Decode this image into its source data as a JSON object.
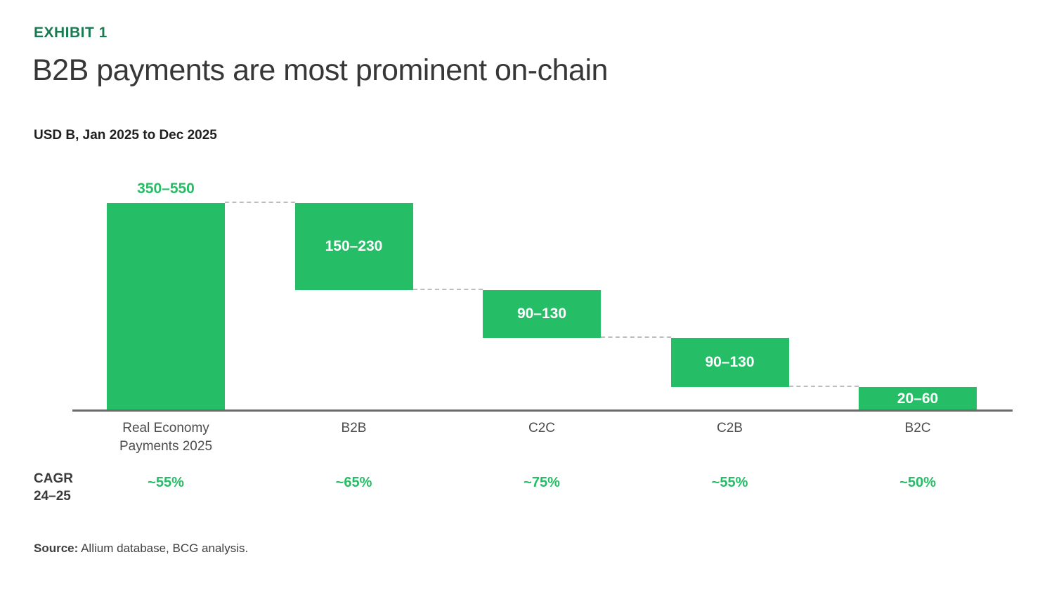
{
  "page": {
    "exhibit_label": "EXHIBIT 1",
    "title": "B2B payments are most prominent on-chain",
    "subtitle": "USD B, Jan 2025 to Dec 2025",
    "source_label": "Source:",
    "source_text": "Allium database, BCG analysis."
  },
  "cagr": {
    "header_line1": "CAGR",
    "header_line2": "24–25"
  },
  "colors": {
    "bar_green": "#25BD66",
    "dark_green": "#1B7A52",
    "cagr_green": "#25BD66",
    "label_above_green": "#25BD66",
    "axis_gray": "#6B6B6B",
    "connector_gray": "#BDBDBD"
  },
  "chart_data": {
    "type": "waterfall",
    "title": "B2B payments are most prominent on-chain",
    "units_label": "USD B, Jan 2025 to Dec 2025",
    "ylim": [
      0,
      450
    ],
    "grid": false,
    "legend": false,
    "bars": [
      {
        "category": "Real Economy\nPayments 2025",
        "range_label": "350–550",
        "value_low": 350,
        "value_high": 550,
        "cagr": "~55%",
        "plot_start": 0,
        "plot_end": 450,
        "label_position": "above"
      },
      {
        "category": "B2B",
        "range_label": "150–230",
        "value_low": 150,
        "value_high": 230,
        "cagr": "~65%",
        "plot_start": 450,
        "plot_end": 262,
        "label_position": "inside"
      },
      {
        "category": "C2C",
        "range_label": "90–130",
        "value_low": 90,
        "value_high": 130,
        "cagr": "~75%",
        "plot_start": 262,
        "plot_end": 158,
        "label_position": "inside"
      },
      {
        "category": "C2B",
        "range_label": "90–130",
        "value_low": 90,
        "value_high": 130,
        "cagr": "~55%",
        "plot_start": 158,
        "plot_end": 52,
        "label_position": "inside"
      },
      {
        "category": "B2C",
        "range_label": "20–60",
        "value_low": 20,
        "value_high": 60,
        "cagr": "~50%",
        "plot_start": 52,
        "plot_end": 0,
        "label_position": "inside"
      }
    ]
  }
}
